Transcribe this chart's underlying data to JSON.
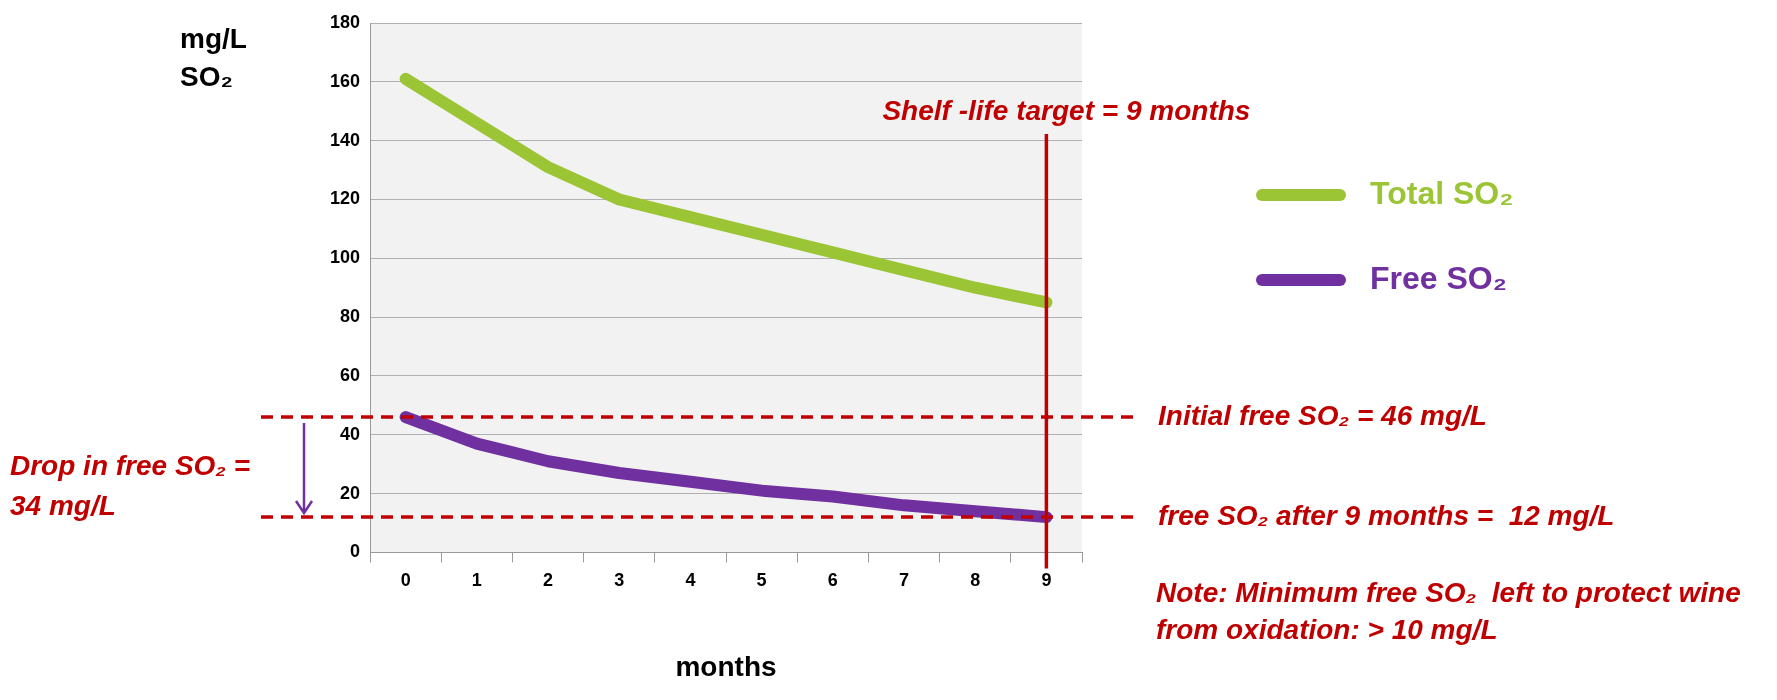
{
  "chart_data": {
    "type": "line",
    "categories": [
      "0",
      "1",
      "2",
      "3",
      "4",
      "5",
      "6",
      "7",
      "8",
      "9"
    ],
    "series": [
      {
        "name": "Total SO₂",
        "color": "#9bc534",
        "values": [
          161,
          146,
          131,
          120,
          114,
          108,
          102,
          96,
          90,
          85
        ]
      },
      {
        "name": "Free SO₂",
        "color": "#7030a0",
        "values": [
          46,
          37,
          31,
          27,
          24,
          21,
          19,
          16,
          14,
          12
        ]
      }
    ],
    "xlabel": "months",
    "ylabel": "mg/L\nSO₂",
    "ylim": [
      0,
      180
    ],
    "yticks": [
      0,
      20,
      40,
      60,
      80,
      100,
      120,
      140,
      160,
      180
    ],
    "grid": "y",
    "legend": "right",
    "marker": "none",
    "line_style": "solid",
    "ref_lines": [
      {
        "axis": "y",
        "value": 46,
        "label": "Initial free SO₂ = 46 mg/L",
        "color": "#c00000",
        "line_style": "dashed"
      },
      {
        "axis": "y",
        "value": 12,
        "label": "free SO₂ after 9 months =  12 mg/L",
        "color": "#c00000",
        "line_style": "dashed"
      },
      {
        "axis": "x",
        "value": "9",
        "label": "Shelf -life target = 9 months",
        "color": "#c00000",
        "line_style": "solid"
      }
    ],
    "annotations": [
      "Drop in free SO₂ = 34 mg/L",
      "Note: Minimum free SO₂  left to protect wine from oxidation: > 10 mg/L"
    ]
  }
}
